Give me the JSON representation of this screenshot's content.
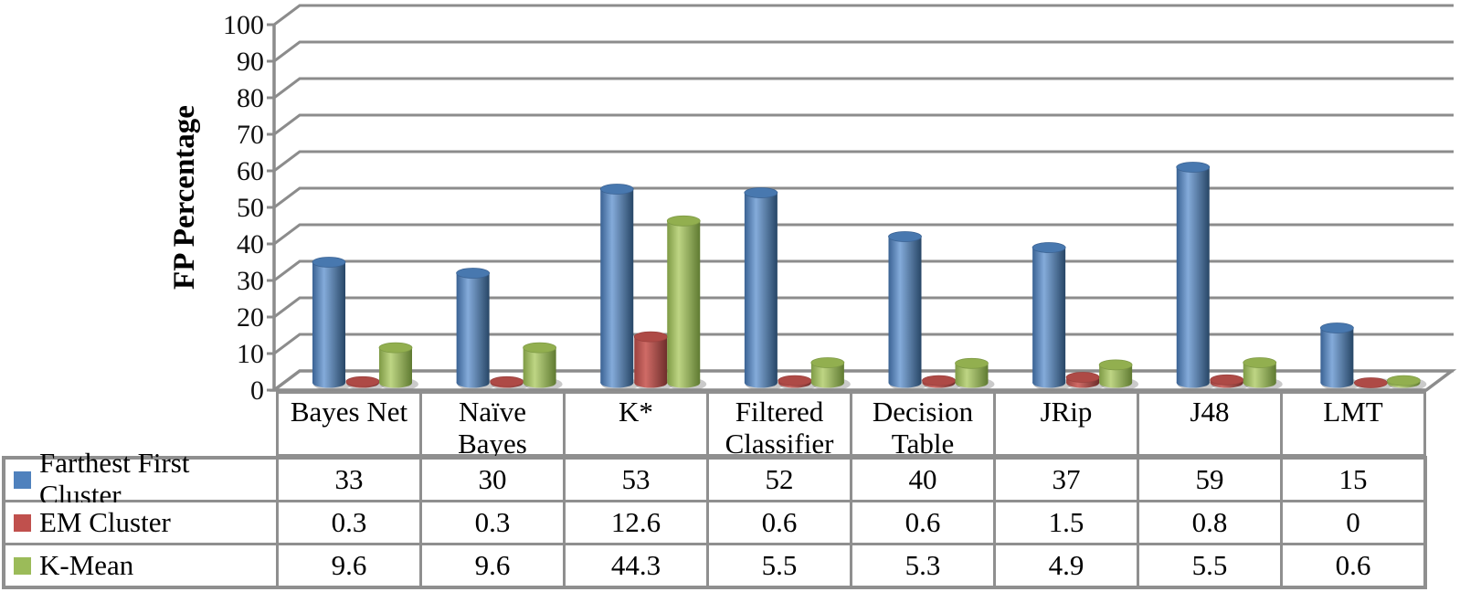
{
  "chart_data": {
    "type": "bar",
    "subtype": "3d-cylinder",
    "title": "",
    "xlabel": "",
    "ylabel": "FP Percentage",
    "ylim": [
      0,
      100
    ],
    "ytick_step": 10,
    "grid": true,
    "legend_position": "table-left",
    "categories": [
      "Bayes Net",
      "Naïve Bayes",
      "K*",
      "Filtered Classifier",
      "Decision Table",
      "JRip",
      "J48",
      "LMT"
    ],
    "series": [
      {
        "name": "Farthest First Cluster",
        "color": "#4F81BD",
        "values": [
          33,
          30,
          53,
          52,
          40,
          37,
          59,
          15
        ]
      },
      {
        "name": "EM Cluster",
        "color": "#C0504D",
        "values": [
          0.3,
          0.3,
          12.6,
          0.6,
          0.6,
          1.5,
          0.8,
          0
        ]
      },
      {
        "name": "K-Mean",
        "color": "#9BBB59",
        "values": [
          9.6,
          9.6,
          44.3,
          5.5,
          5.3,
          4.9,
          5.5,
          0.6
        ]
      }
    ]
  },
  "style": {
    "grid_color": "#8C8C8C",
    "table_border_color": "#8F8F8F",
    "text_color": "#000000",
    "cylinder_shading": [
      {
        "edge_left": "#3A6293",
        "highlight": "#84ABDA",
        "edge_right": "#274666",
        "top": "#4878AF"
      },
      {
        "edge_left": "#9A413E",
        "highlight": "#CF6B66",
        "edge_right": "#6E2D2B",
        "top": "#AE4A46"
      },
      {
        "edge_left": "#7E9A45",
        "highlight": "#BED584",
        "edge_right": "#5F7A31",
        "top": "#92AF4F"
      }
    ]
  }
}
